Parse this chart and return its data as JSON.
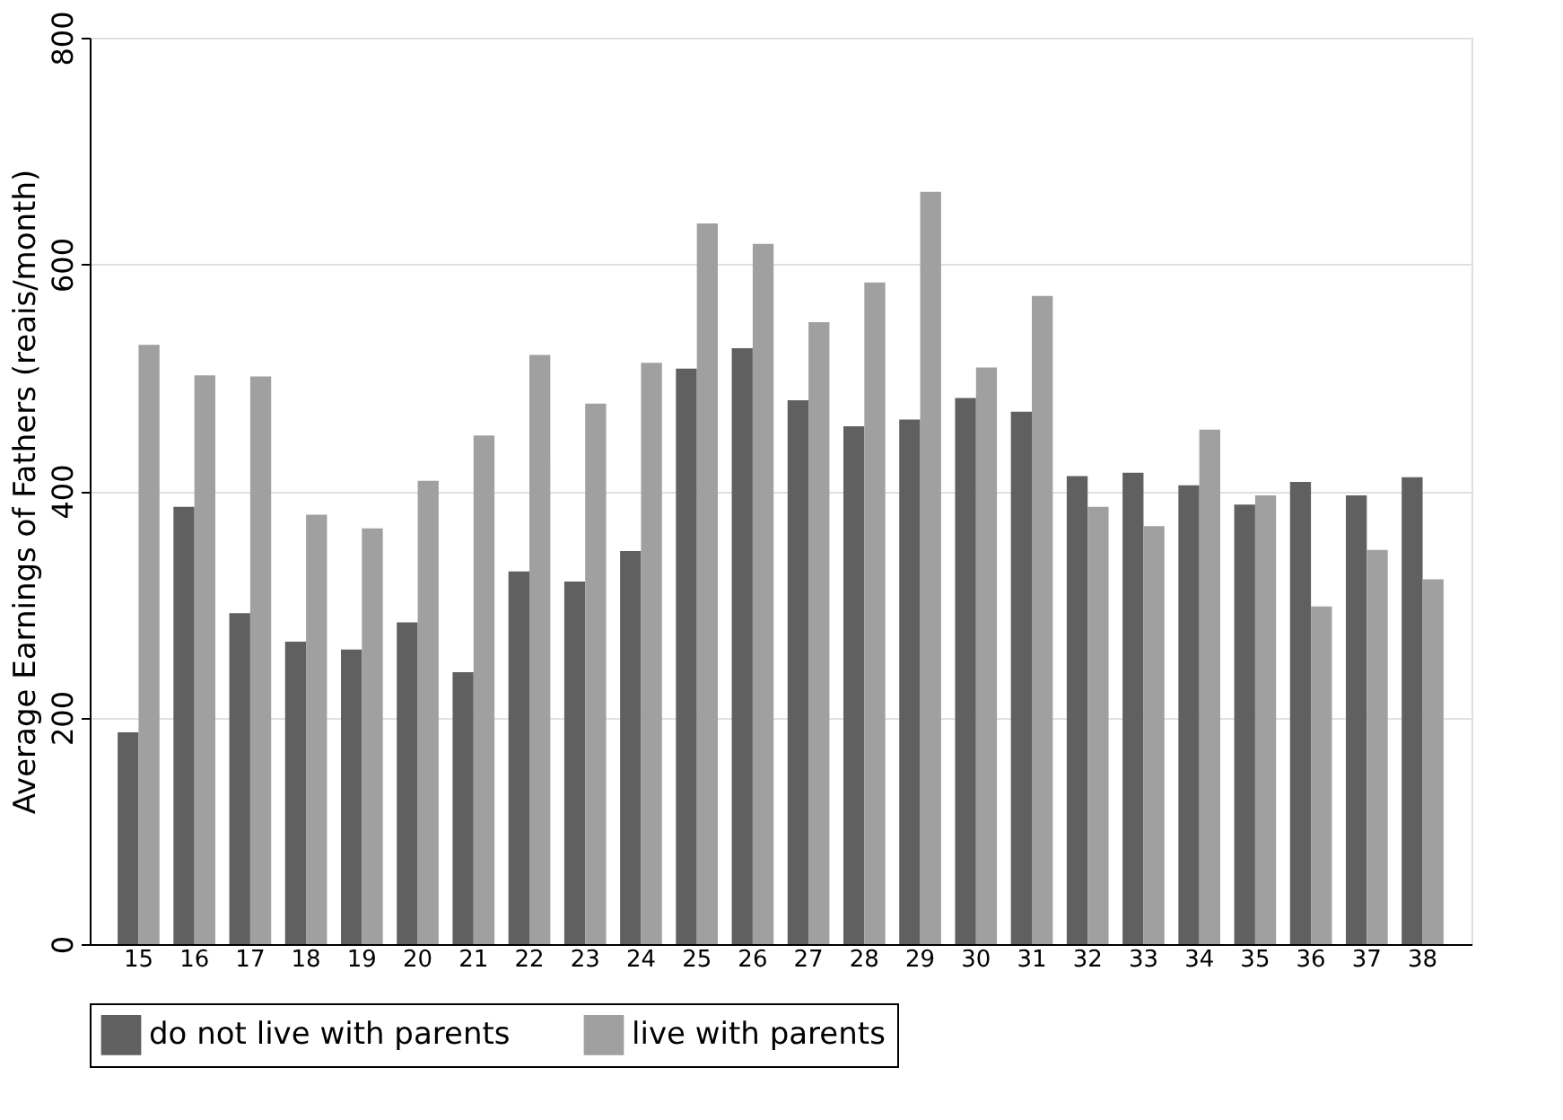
{
  "chart_data": {
    "type": "bar",
    "ylabel": "Average Earnings of Fathers (reais/month)",
    "categories": [
      "15",
      "16",
      "17",
      "18",
      "19",
      "20",
      "21",
      "22",
      "23",
      "24",
      "25",
      "26",
      "27",
      "28",
      "29",
      "30",
      "31",
      "32",
      "33",
      "34",
      "35",
      "36",
      "37",
      "38"
    ],
    "series": [
      {
        "name": "do not live with parents",
        "color": "#606060",
        "values": [
          187,
          386,
          292,
          267,
          260,
          284,
          240,
          329,
          320,
          347,
          508,
          526,
          480,
          457,
          463,
          482,
          470,
          413,
          416,
          405,
          388,
          408,
          396,
          412
        ]
      },
      {
        "name": "live with parents",
        "color": "#a0a0a0",
        "values": [
          529,
          502,
          501,
          379,
          367,
          409,
          449,
          520,
          477,
          513,
          636,
          618,
          549,
          584,
          664,
          509,
          572,
          386,
          369,
          454,
          396,
          298,
          348,
          322
        ]
      }
    ],
    "ylim": [
      0,
      800
    ],
    "yticks": [
      0,
      200,
      400,
      600,
      800
    ],
    "grid": "y",
    "legend": "bottom"
  }
}
